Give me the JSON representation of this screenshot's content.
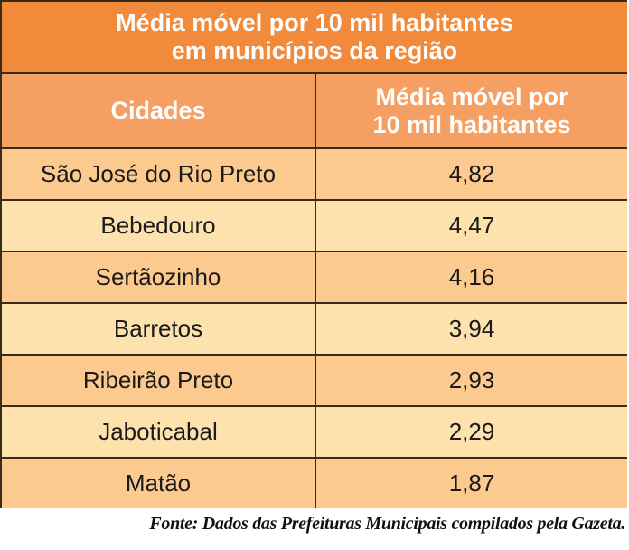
{
  "chart_data": {
    "type": "table",
    "title_lines": [
      "Média móvel por 10 mil habitantes",
      "em municípios da região"
    ],
    "columns": [
      {
        "lines": [
          "Cidades"
        ]
      },
      {
        "lines": [
          "Média móvel por",
          "10 mil habitantes"
        ]
      }
    ],
    "rows": [
      {
        "city": "São José do Rio Preto",
        "value": "4,82"
      },
      {
        "city": "Bebedouro",
        "value": "4,47"
      },
      {
        "city": "Sertãozinho",
        "value": "4,16"
      },
      {
        "city": "Barretos",
        "value": "3,94"
      },
      {
        "city": "Ribeirão Preto",
        "value": "2,93"
      },
      {
        "city": "Jaboticabal",
        "value": "2,29"
      },
      {
        "city": "Matão",
        "value": "1,87"
      }
    ],
    "source": "Fonte: Dados das Prefeituras Municipais compilados pela Gazeta."
  },
  "colors": {
    "title_bg": "#f18a3a",
    "header_bg": "#f5a062",
    "row_odd_bg": "#fcc98e",
    "row_even_bg": "#fde2ad",
    "border": "#3a2a1a"
  }
}
